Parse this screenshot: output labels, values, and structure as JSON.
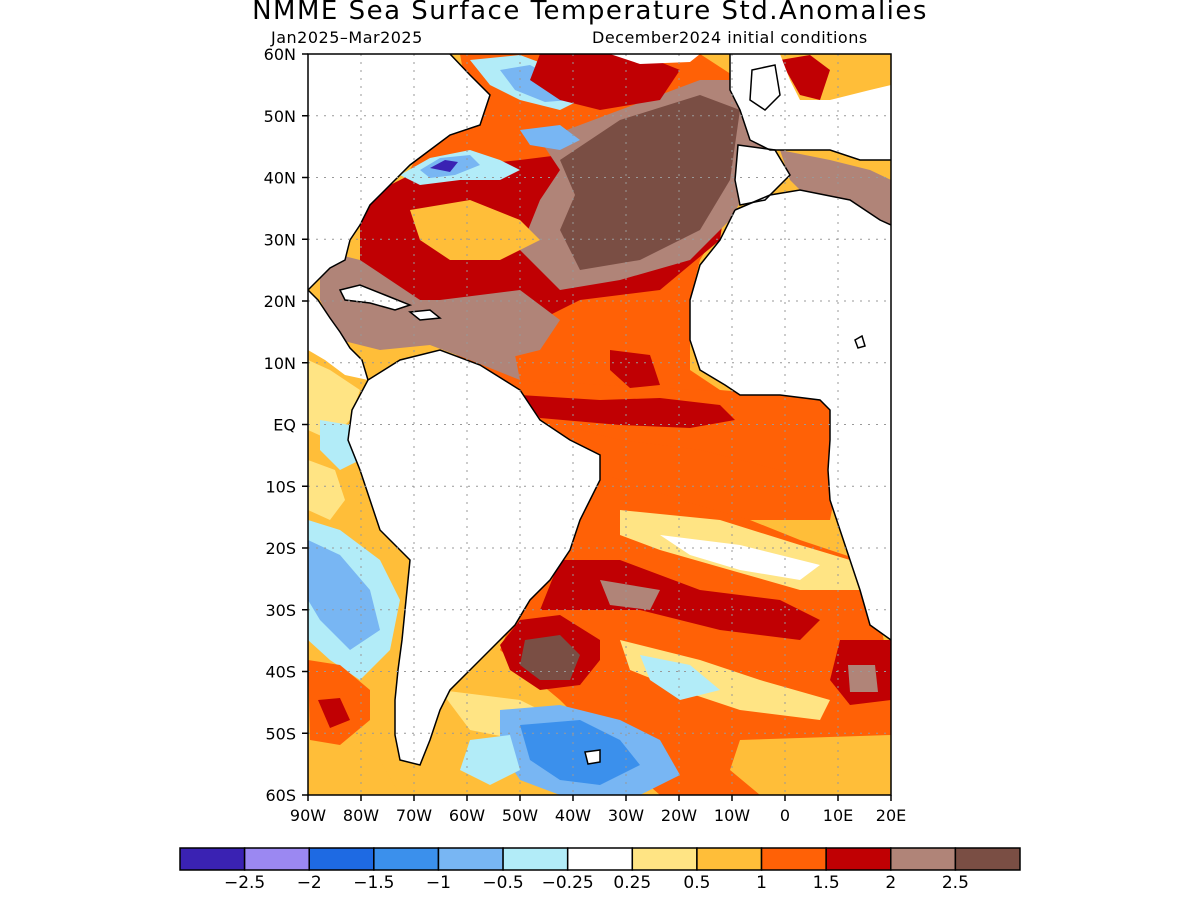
{
  "header": {
    "title": "NMME Sea Surface Temperature Std.Anomalies",
    "period": "Jan2025–Mar2025",
    "initial_conditions": "December2024 initial conditions"
  },
  "map": {
    "lon_range": [
      -90,
      20
    ],
    "lat_range": [
      -60,
      60
    ],
    "lat_ticks": [
      {
        "value": 60,
        "label": "60N"
      },
      {
        "value": 50,
        "label": "50N"
      },
      {
        "value": 40,
        "label": "40N"
      },
      {
        "value": 30,
        "label": "30N"
      },
      {
        "value": 20,
        "label": "20N"
      },
      {
        "value": 10,
        "label": "10N"
      },
      {
        "value": 0,
        "label": "EQ"
      },
      {
        "value": -10,
        "label": "10S"
      },
      {
        "value": -20,
        "label": "20S"
      },
      {
        "value": -30,
        "label": "30S"
      },
      {
        "value": -40,
        "label": "40S"
      },
      {
        "value": -50,
        "label": "50S"
      },
      {
        "value": -60,
        "label": "60S"
      }
    ],
    "lon_ticks": [
      {
        "value": -90,
        "label": "90W"
      },
      {
        "value": -80,
        "label": "80W"
      },
      {
        "value": -70,
        "label": "70W"
      },
      {
        "value": -60,
        "label": "60W"
      },
      {
        "value": -50,
        "label": "50W"
      },
      {
        "value": -40,
        "label": "40W"
      },
      {
        "value": -30,
        "label": "30W"
      },
      {
        "value": -20,
        "label": "20W"
      },
      {
        "value": -10,
        "label": "10W"
      },
      {
        "value": 0,
        "label": "0"
      },
      {
        "value": 10,
        "label": "10E"
      },
      {
        "value": 20,
        "label": "20E"
      }
    ],
    "grid": true,
    "colors": {
      "land": "#ffffff",
      "coast": "#000000",
      "grid": "#999999"
    }
  },
  "colorbar": {
    "colors": [
      "#3a22b3",
      "#9b88f2",
      "#1e6ae3",
      "#3b90ec",
      "#78b6f3",
      "#b2ecf8",
      "#ffffff",
      "#ffe484",
      "#ffbe39",
      "#ff6106",
      "#c00003",
      "#b08478",
      "#7a4e44"
    ],
    "labels": [
      "−2.5",
      "−2",
      "−1.5",
      "−1",
      "−0.5",
      "−0.25",
      "0.25",
      "0.5",
      "1",
      "1.5",
      "2",
      "2.5"
    ]
  }
}
